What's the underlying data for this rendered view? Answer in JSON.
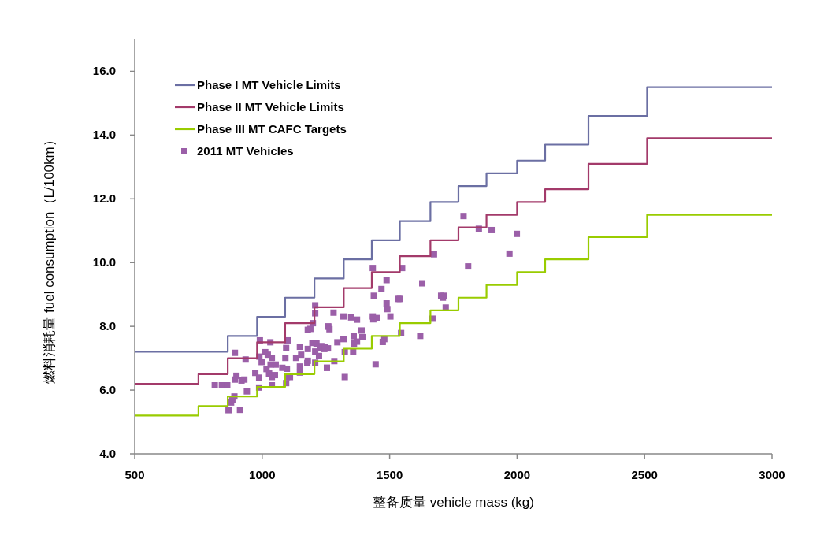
{
  "chart_data": {
    "type": "step",
    "xlabel": "整备质量 vehicle mass (kg)",
    "ylabel": "燃料消耗量 fuel consumption（L/100km）",
    "xlim": [
      500,
      3000
    ],
    "xticks": [
      500,
      1000,
      1500,
      2000,
      2500,
      3000
    ],
    "ylim": [
      4,
      17
    ],
    "yticks": [
      {
        "value": 4,
        "label": "4.0"
      },
      {
        "value": 6,
        "label": "6.0"
      },
      {
        "value": 8,
        "label": "8.0"
      },
      {
        "value": 10,
        "label": "10.0"
      },
      {
        "value": 12,
        "label": "12.0"
      },
      {
        "value": 14,
        "label": "14.0"
      },
      {
        "value": 16,
        "label": "16.0"
      }
    ],
    "grid": false,
    "legend": "top left",
    "x": [
      500,
      750,
      865,
      980,
      1090,
      1205,
      1320,
      1430,
      1540,
      1660,
      1770,
      1880,
      2000,
      2110,
      2280,
      2510,
      3000
    ],
    "series": [
      {
        "name": "Phase I MT Vehicle Limits",
        "color": "#6b6fa3",
        "values": [
          7.2,
          7.2,
          7.7,
          8.3,
          8.9,
          9.5,
          10.1,
          10.7,
          11.3,
          11.9,
          12.4,
          12.8,
          13.2,
          13.7,
          14.6,
          15.5,
          15.5
        ]
      },
      {
        "name": "Phase II MT Vehicle Limits",
        "color": "#a33a6a",
        "values": [
          6.2,
          6.5,
          7.0,
          7.5,
          8.1,
          8.6,
          9.2,
          9.7,
          10.2,
          10.7,
          11.1,
          11.5,
          11.9,
          12.3,
          13.1,
          13.9,
          13.9
        ]
      },
      {
        "name": "Phase III MT CAFC Targets",
        "color": "#99cc00",
        "values": [
          5.2,
          5.5,
          5.8,
          6.1,
          6.5,
          6.9,
          7.3,
          7.7,
          8.1,
          8.5,
          8.9,
          9.3,
          9.7,
          10.1,
          10.8,
          11.5,
          11.5
        ]
      },
      {
        "name": "2011 MT Vehicles",
        "type": "scatter",
        "marker": "square",
        "color": "#9b5fa8",
        "x": [
          893,
          814,
          842,
          863,
          899,
          893,
          919,
          930,
          940,
          891,
          883,
          878,
          868,
          913,
          935,
          973,
          988,
          988,
          991,
          1032,
          989,
          1012,
          1022,
          998,
          1038,
          1033,
          1053,
          1017,
          1027,
          1038,
          1050,
          1038,
          1094,
          1100,
          1091,
          1079,
          1097,
          1097,
          1109,
          1094,
          1148,
          1153,
          1133,
          1148,
          1148,
          1179,
          1179,
          1177,
          1208,
          1208,
          1199,
          1179,
          1189,
          1197,
          1213,
          1208,
          1223,
          1208,
          1254,
          1259,
          1228,
          1244,
          1790,
          1850,
          1900,
          1999,
          1970,
          1808,
          1674,
          1549,
          1434,
          1628,
          1488,
          1468,
          1438,
          1534,
          1540,
          1702,
          1712,
          1709,
          1720,
          1488,
          1491,
          1503,
          1434,
          1436,
          1450,
          1372,
          1349,
          1319,
          1280,
          1259,
          1264,
          1390,
          1393,
          1359,
          1372,
          1360,
          1357,
          1319,
          1295,
          1324,
          1283,
          1254,
          1324,
          1445,
          1479,
          1473,
          1545,
          1620,
          1668,
          1232,
          1245,
          1258
        ],
        "values": [
          7.17,
          6.15,
          6.15,
          6.15,
          6.45,
          6.33,
          6.3,
          6.33,
          5.96,
          5.8,
          5.7,
          5.61,
          5.37,
          5.38,
          6.96,
          6.54,
          6.39,
          6.08,
          7.56,
          7.5,
          7.05,
          7.19,
          7.11,
          6.88,
          7.01,
          6.8,
          6.8,
          6.66,
          6.52,
          6.41,
          6.47,
          6.15,
          7.32,
          7.56,
          7.01,
          6.7,
          6.67,
          6.41,
          6.41,
          6.22,
          7.36,
          7.11,
          7.01,
          6.74,
          6.55,
          7.29,
          6.92,
          6.85,
          8.66,
          8.41,
          8.1,
          7.89,
          7.92,
          7.48,
          7.46,
          7.21,
          7.07,
          6.86,
          6.7,
          8.0,
          7.32,
          7.29,
          11.46,
          11.06,
          11.02,
          10.9,
          10.28,
          9.88,
          10.26,
          9.83,
          9.83,
          9.35,
          9.45,
          9.17,
          8.96,
          8.86,
          8.86,
          8.96,
          8.96,
          8.9,
          8.59,
          8.72,
          8.54,
          8.31,
          8.31,
          8.22,
          8.26,
          8.21,
          8.28,
          8.31,
          8.43,
          7.99,
          7.91,
          7.87,
          7.66,
          7.69,
          7.52,
          7.46,
          7.21,
          7.6,
          7.5,
          7.19,
          6.91,
          6.7,
          6.41,
          6.81,
          7.6,
          7.51,
          7.79,
          7.7,
          8.24,
          7.38,
          7.34,
          7.31
        ]
      }
    ]
  }
}
